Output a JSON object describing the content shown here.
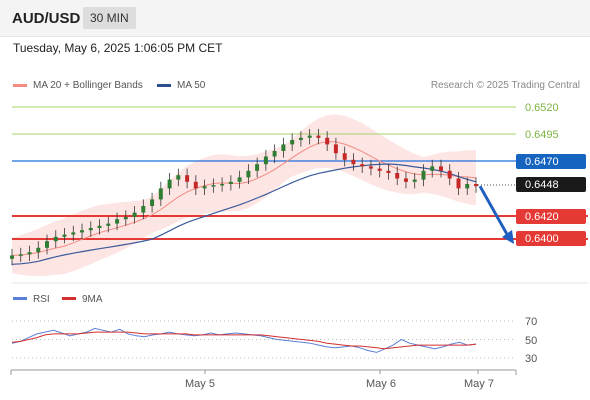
{
  "header": {
    "symbol": "AUD/USD",
    "timeframe": "30 MIN"
  },
  "datetime": "Tuesday, May 6, 2025 1:06:05 PM CET",
  "legend": {
    "bollinger": {
      "label": "MA 20 + Bollinger Bands",
      "color": "#f28b82"
    },
    "ma50": {
      "label": "MA 50",
      "color": "#2c4f8c"
    }
  },
  "research": "Research © 2025 Trading Central",
  "levels": {
    "r2": {
      "label": "0.6520",
      "color": "#8bc34a"
    },
    "r1": {
      "label": "0.6495",
      "color": "#8bc34a"
    },
    "pivot": {
      "label": "0.6470",
      "color": "#1565c0"
    },
    "last": {
      "label": "0.6448",
      "color": "#1a1a1a"
    },
    "s1": {
      "label": "0.6420",
      "color": "#e53935"
    },
    "s2": {
      "label": "0.6400",
      "color": "#e53935"
    }
  },
  "rsi_legend": {
    "rsi": {
      "label": "RSI",
      "color": "#5b7fd6"
    },
    "ma": {
      "label": "9MA",
      "color": "#d32f2f"
    }
  },
  "rsi_axis": [
    "70",
    "50",
    "30"
  ],
  "x_axis": [
    "May 5",
    "May 6",
    "May 7"
  ],
  "chart_data": {
    "type": "candlestick",
    "price_last": 0.6448,
    "trend_arrow": {
      "from": 0.6448,
      "to": 0.64
    },
    "close_series": [
      0.6385,
      0.6386,
      0.6388,
      0.6392,
      0.6398,
      0.6402,
      0.6404,
      0.6406,
      0.6408,
      0.641,
      0.6412,
      0.6414,
      0.6418,
      0.642,
      0.6424,
      0.643,
      0.6436,
      0.6446,
      0.6454,
      0.6458,
      0.6452,
      0.6446,
      0.6448,
      0.6449,
      0.645,
      0.6452,
      0.6456,
      0.6462,
      0.6468,
      0.6475,
      0.648,
      0.6486,
      0.649,
      0.6492,
      0.6494,
      0.6492,
      0.6486,
      0.6478,
      0.6472,
      0.6468,
      0.6466,
      0.6464,
      0.6462,
      0.646,
      0.6455,
      0.6452,
      0.6454,
      0.6462,
      0.6466,
      0.6462,
      0.6455,
      0.6446,
      0.645,
      0.6448
    ],
    "rsi_series": [
      46,
      48,
      52,
      56,
      58,
      60,
      57,
      54,
      56,
      58,
      62,
      60,
      58,
      61,
      56,
      54,
      53,
      55,
      56,
      58,
      56,
      55,
      54,
      55,
      57,
      55,
      56,
      57,
      56,
      55,
      54,
      52,
      50,
      49,
      48,
      47,
      46,
      44,
      42,
      41,
      42,
      43,
      41,
      38,
      36,
      40,
      44,
      50,
      46,
      44,
      42,
      40,
      42,
      45,
      47,
      44,
      45
    ],
    "rsi_ma_series": [
      47,
      48,
      50,
      52,
      55,
      56,
      56,
      56,
      56,
      57,
      58,
      58,
      58,
      58,
      58,
      57,
      56,
      56,
      56,
      56,
      56,
      56,
      55,
      55,
      55,
      55,
      55,
      55,
      55,
      55,
      55,
      54,
      53,
      52,
      51,
      50,
      49,
      48,
      46,
      45,
      44,
      43,
      43,
      42,
      41,
      40,
      41,
      42,
      43,
      44,
      44,
      44,
      44,
      44,
      44,
      44,
      45
    ]
  }
}
